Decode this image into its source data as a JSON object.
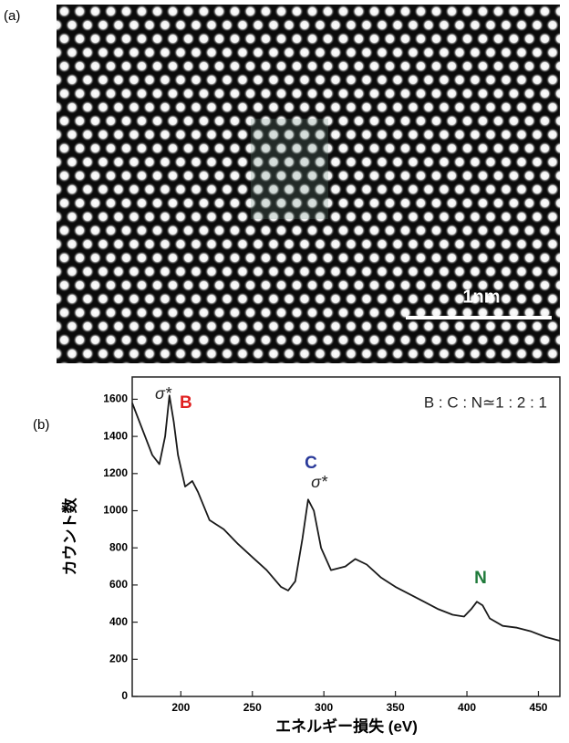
{
  "panel_a": {
    "label": "(a)",
    "scale_bar": "1nm"
  },
  "chart_data": {
    "type": "line",
    "panel_label": "(b)",
    "x_label": "エネルギー損失 (eV)",
    "y_label": "カウント数",
    "xlim": [
      166,
      465
    ],
    "ylim": [
      0,
      1720
    ],
    "xticks": [
      200,
      250,
      300,
      350,
      400,
      450
    ],
    "yticks": [
      0,
      200,
      400,
      600,
      800,
      1000,
      1200,
      1400,
      1600
    ],
    "x": [
      166,
      175,
      180,
      185,
      189,
      192,
      195,
      198,
      203,
      208,
      212,
      220,
      230,
      240,
      250,
      260,
      270,
      275,
      280,
      285,
      289,
      293,
      298,
      305,
      315,
      322,
      330,
      340,
      350,
      360,
      370,
      380,
      390,
      398,
      403,
      407,
      411,
      416,
      425,
      435,
      445,
      455,
      465
    ],
    "series": [
      {
        "color": "#1a1a1a",
        "values": [
          1580,
          1400,
          1300,
          1250,
          1400,
          1620,
          1480,
          1300,
          1130,
          1160,
          1100,
          950,
          900,
          820,
          750,
          680,
          590,
          570,
          620,
          850,
          1060,
          1000,
          800,
          680,
          700,
          740,
          710,
          640,
          590,
          550,
          510,
          470,
          440,
          430,
          470,
          510,
          490,
          420,
          380,
          370,
          350,
          320,
          300
        ]
      }
    ],
    "annotations": [
      {
        "text": "σ*",
        "color": "#222222"
      },
      {
        "text": "B",
        "color": "#e02020"
      },
      {
        "text": "C",
        "color": "#2a3a9a"
      },
      {
        "text": "σ*",
        "color": "#222222"
      },
      {
        "text": "N",
        "color": "#1f7a3a"
      },
      {
        "text": "B : C : N≃1 : 2 : 1",
        "color": "#222222"
      }
    ]
  }
}
